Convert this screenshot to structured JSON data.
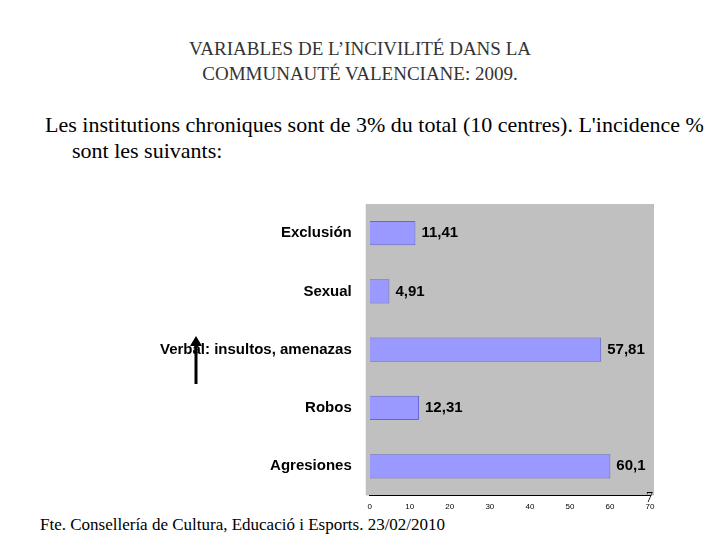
{
  "chart_data": {
    "type": "bar",
    "orientation": "horizontal",
    "title": "VARIABLES DE L’INCIVILITÉ DANS LA COMMUNAUTÉ VALENCIANE: 2009.",
    "subtitle": "Les institutions chroniques sont de 3% du total (10 centres). L'incidence % sont les suivants:",
    "categories": [
      "Exclusión",
      "Sexual",
      "Verbal: insultos, amenazas",
      "Robos",
      "Agresiones"
    ],
    "values": [
      11.41,
      4.91,
      57.81,
      12.31,
      60.1
    ],
    "value_labels": [
      "11,41",
      "4,91",
      "57,81",
      "12,31",
      "60,1"
    ],
    "data_labels": true,
    "color": "#9999ff",
    "xlim": [
      0,
      70
    ],
    "xticks": [
      0,
      10,
      20,
      30,
      40,
      50,
      60,
      70
    ],
    "grid": false
  },
  "slide": {
    "source": "Fte. Consellería de Cultura, Educació i Esports. 23/02/2010",
    "page": 7
  }
}
